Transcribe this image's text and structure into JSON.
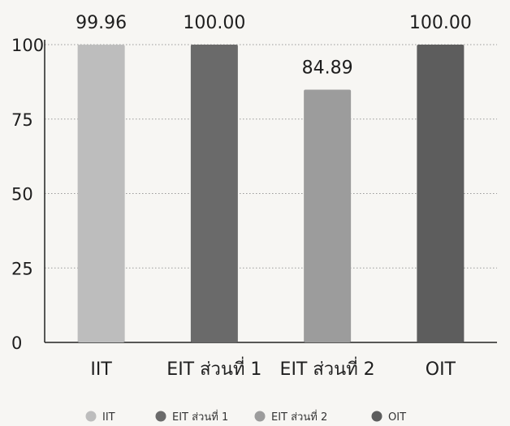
{
  "chart_data": {
    "type": "bar",
    "categories": [
      "IIT",
      "EIT ส่วนที่ 1",
      "EIT ส่วนที่ 2",
      "OIT"
    ],
    "values": [
      99.96,
      100.0,
      84.89,
      100.0
    ],
    "value_labels": [
      "99.96",
      "100.00",
      "84.89",
      "100.00"
    ],
    "ylim": [
      0,
      100
    ],
    "yticks": [
      0,
      25,
      50,
      75,
      100
    ],
    "grid": true,
    "legend_position": "bottom",
    "bar_colors": [
      "#bdbdbd",
      "#6a6a6a",
      "#9c9c9c",
      "#5d5d5d"
    ],
    "legend": [
      {
        "label": "IIT",
        "color": "#bdbdbd"
      },
      {
        "label": "EIT ส่วนที่ 1",
        "color": "#6a6a6a"
      },
      {
        "label": "EIT ส่วนที่ 2",
        "color": "#9c9c9c"
      },
      {
        "label": "OIT",
        "color": "#5d5d5d"
      }
    ]
  }
}
